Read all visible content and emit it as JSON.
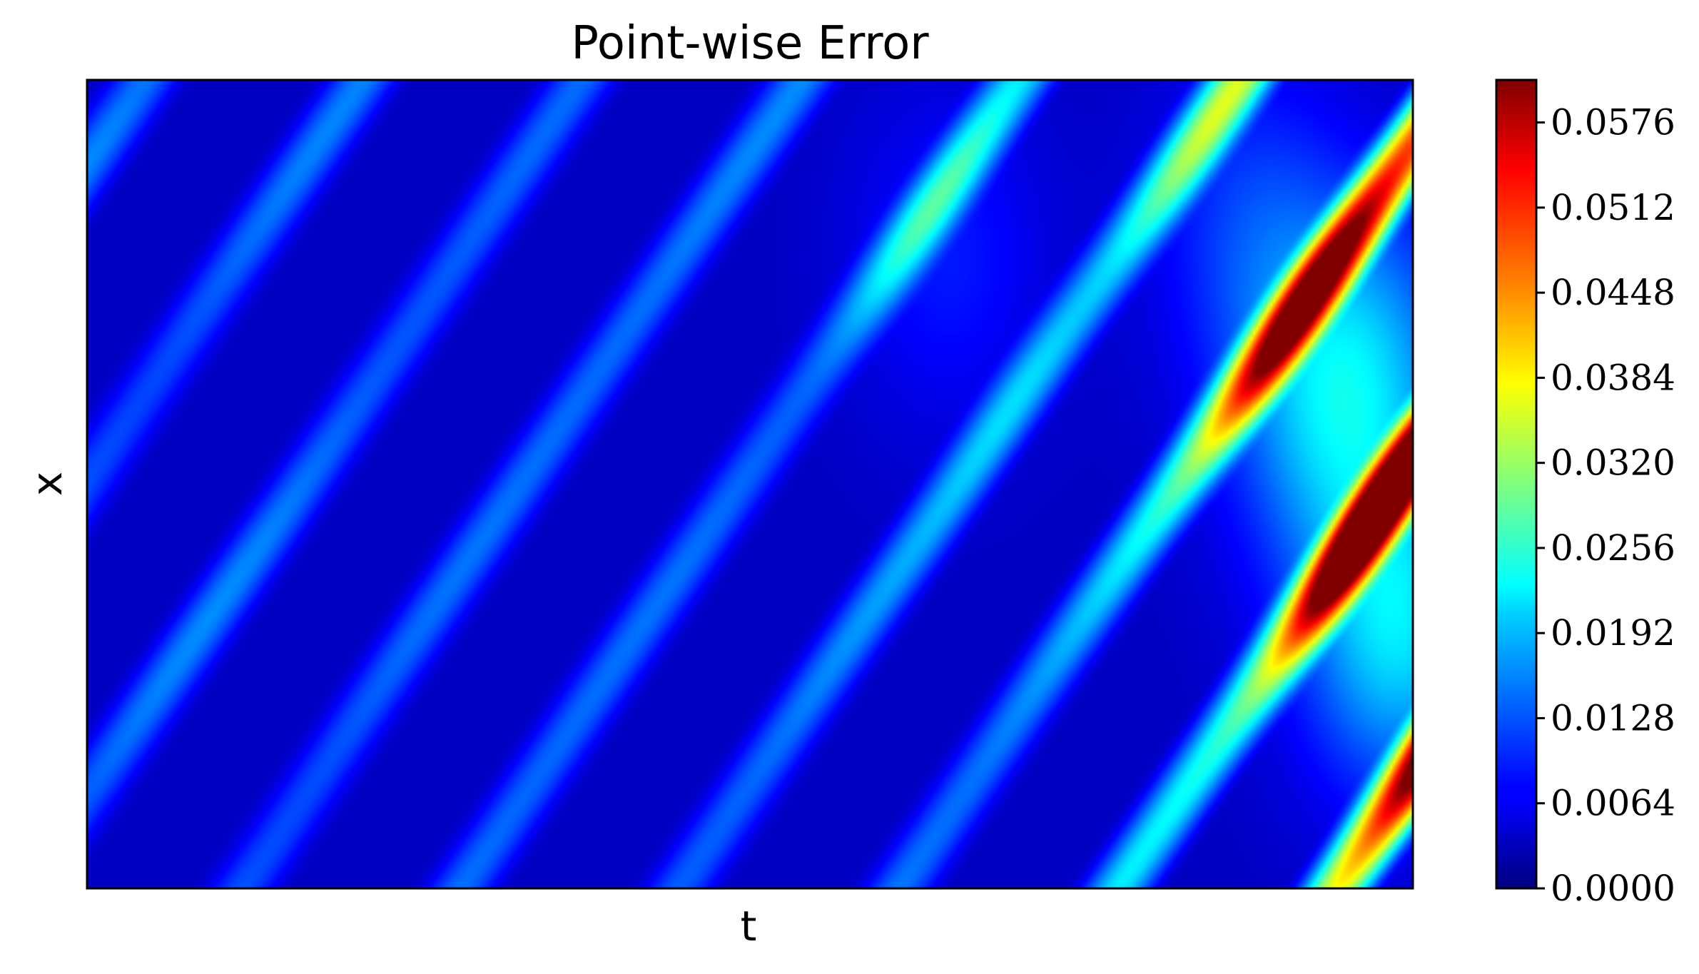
{
  "chart_data": {
    "type": "heatmap",
    "title": "Point-wise Error",
    "xlabel": "t",
    "ylabel": "x",
    "x_ticks_visible": false,
    "y_ticks_visible": false,
    "colormap": "jet",
    "colorbar": {
      "min": 0.0,
      "max": 0.0608,
      "ticks": [
        0.0,
        0.0064,
        0.0128,
        0.0192,
        0.0256,
        0.032,
        0.0384,
        0.0448,
        0.0512,
        0.0576
      ],
      "tick_labels": [
        "0.0000",
        "0.0064",
        "0.0128",
        "0.0192",
        "0.0256",
        "0.0320",
        "0.0384",
        "0.0448",
        "0.0512",
        "0.0576"
      ],
      "position": "right"
    },
    "field": {
      "description_of_pattern": "diagonal oscillating error bands, largest near the final time",
      "background_level": 0.004,
      "max_value": 0.06,
      "hot_spots": [
        {
          "t_frac": 0.99,
          "x_frac": 0.68,
          "value": 0.06
        },
        {
          "t_frac": 0.93,
          "x_frac": 0.42,
          "value": 0.04
        },
        {
          "t_frac": 0.97,
          "x_frac": 0.34,
          "value": 0.04
        },
        {
          "t_frac": 0.88,
          "x_frac": 0.18,
          "value": 0.032
        },
        {
          "t_frac": 0.65,
          "x_frac": 0.22,
          "value": 0.026
        }
      ]
    }
  }
}
